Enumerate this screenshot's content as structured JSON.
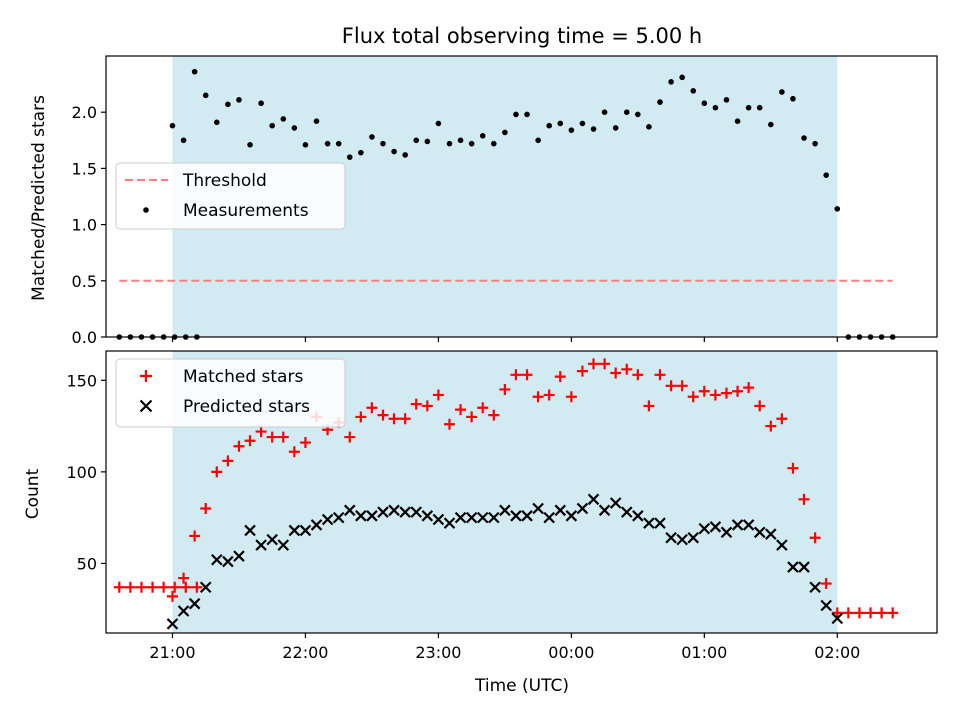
{
  "chart_data": [
    {
      "type": "scatter",
      "title": "Flux total observing time = 5.00 h",
      "ylabel": "Matched/Predicted stars",
      "xlabel": "",
      "xlim": [
        "20:30",
        "02:45"
      ],
      "ylim": [
        0,
        2.5
      ],
      "yticks": [
        0.0,
        0.5,
        1.0,
        1.5,
        2.0
      ],
      "ytick_labels": [
        "0.0",
        "0.5",
        "1.0",
        "1.5",
        "2.0"
      ],
      "shaded_region": {
        "from": "21:00",
        "to": "02:00",
        "color": "#add8e6"
      },
      "legend": {
        "placement": "center-left",
        "entries": [
          "Threshold",
          "Measurements"
        ]
      },
      "threshold": {
        "name": "Threshold",
        "value": 0.5,
        "x_from": "20:36",
        "x_to": "02:25",
        "color": "#ff7f7f",
        "style": "dashed"
      },
      "series": [
        {
          "name": "Measurements",
          "color": "#000000",
          "marker": "dot",
          "x": [
            "20:36",
            "20:41",
            "20:46",
            "20:51",
            "20:56",
            "21:01",
            "21:06",
            "21:11",
            "21:00",
            "21:05",
            "21:10",
            "21:15",
            "21:20",
            "21:25",
            "21:30",
            "21:35",
            "21:40",
            "21:45",
            "21:50",
            "21:55",
            "22:00",
            "22:05",
            "22:10",
            "22:15",
            "22:20",
            "22:25",
            "22:30",
            "22:35",
            "22:40",
            "22:45",
            "22:50",
            "22:55",
            "23:00",
            "23:05",
            "23:10",
            "23:15",
            "23:20",
            "23:25",
            "23:30",
            "23:35",
            "23:40",
            "23:45",
            "23:50",
            "23:55",
            "00:00",
            "00:05",
            "00:10",
            "00:15",
            "00:20",
            "00:25",
            "00:30",
            "00:35",
            "00:40",
            "00:45",
            "00:50",
            "00:55",
            "01:00",
            "01:05",
            "01:10",
            "01:15",
            "01:20",
            "01:25",
            "01:30",
            "01:35",
            "01:40",
            "01:45",
            "01:50",
            "01:55",
            "02:00",
            "02:05",
            "02:10",
            "02:15",
            "02:20",
            "02:25"
          ],
          "y": [
            0,
            0,
            0,
            0,
            0,
            0,
            0,
            0,
            1.88,
            1.75,
            2.36,
            2.15,
            1.91,
            2.07,
            2.11,
            1.71,
            2.08,
            1.88,
            1.94,
            1.86,
            1.71,
            1.92,
            1.72,
            1.72,
            1.6,
            1.64,
            1.78,
            1.72,
            1.65,
            1.62,
            1.75,
            1.74,
            1.9,
            1.72,
            1.75,
            1.72,
            1.79,
            1.72,
            1.82,
            1.98,
            1.98,
            1.75,
            1.88,
            1.9,
            1.84,
            1.9,
            1.85,
            2.0,
            1.86,
            2.0,
            1.98,
            1.87,
            2.09,
            2.27,
            2.31,
            2.19,
            2.08,
            2.04,
            2.11,
            1.92,
            2.04,
            2.04,
            1.89,
            2.18,
            2.12,
            1.77,
            1.72,
            1.44,
            1.14,
            0,
            0,
            0,
            0,
            0
          ]
        }
      ]
    },
    {
      "type": "scatter",
      "title": "",
      "ylabel": "Count",
      "xlabel": "Time (UTC)",
      "xlim": [
        "20:30",
        "02:45"
      ],
      "ylim": [
        12,
        166
      ],
      "yticks": [
        50,
        100,
        150
      ],
      "ytick_labels": [
        "50",
        "100",
        "150"
      ],
      "xticks": [
        "21:00",
        "22:00",
        "23:00",
        "00:00",
        "01:00",
        "02:00"
      ],
      "xtick_labels": [
        "21:00",
        "22:00",
        "23:00",
        "00:00",
        "01:00",
        "02:00"
      ],
      "shaded_region": {
        "from": "21:00",
        "to": "02:00",
        "color": "#add8e6"
      },
      "legend": {
        "placement": "top-left",
        "entries": [
          "Matched stars",
          "Predicted stars"
        ]
      },
      "series": [
        {
          "name": "Matched stars",
          "color": "#ff0000",
          "marker": "plus",
          "x": [
            "20:36",
            "20:41",
            "20:46",
            "20:51",
            "20:56",
            "21:01",
            "21:06",
            "21:11",
            "21:00",
            "21:05",
            "21:10",
            "21:15",
            "21:20",
            "21:25",
            "21:30",
            "21:35",
            "21:40",
            "21:45",
            "21:50",
            "21:55",
            "22:00",
            "22:05",
            "22:10",
            "22:15",
            "22:20",
            "22:25",
            "22:30",
            "22:35",
            "22:40",
            "22:45",
            "22:50",
            "22:55",
            "23:00",
            "23:05",
            "23:10",
            "23:15",
            "23:20",
            "23:25",
            "23:30",
            "23:35",
            "23:40",
            "23:45",
            "23:50",
            "23:55",
            "00:00",
            "00:05",
            "00:10",
            "00:15",
            "00:20",
            "00:25",
            "00:30",
            "00:35",
            "00:40",
            "00:45",
            "00:50",
            "00:55",
            "01:00",
            "01:05",
            "01:10",
            "01:15",
            "01:20",
            "01:25",
            "01:30",
            "01:35",
            "01:40",
            "01:45",
            "01:50",
            "01:55",
            "02:00",
            "02:05",
            "02:10",
            "02:15",
            "02:20",
            "02:25"
          ],
          "y": [
            37,
            37,
            37,
            37,
            37,
            37,
            37,
            37,
            32,
            42,
            65,
            80,
            100,
            106,
            114,
            117,
            122,
            119,
            119,
            111,
            116,
            130,
            123,
            127,
            119,
            130,
            135,
            131,
            129,
            129,
            137,
            136,
            142,
            126,
            134,
            130,
            135,
            131,
            145,
            153,
            153,
            141,
            142,
            152,
            141,
            155,
            159,
            159,
            154,
            156,
            153,
            136,
            153,
            147,
            147,
            141,
            144,
            142,
            143,
            144,
            146,
            136,
            125,
            129,
            102,
            85,
            64,
            39,
            23,
            23,
            23,
            23,
            23,
            23
          ]
        },
        {
          "name": "Predicted stars",
          "color": "#000000",
          "marker": "x",
          "x": [
            "21:00",
            "21:05",
            "21:10",
            "21:15",
            "21:20",
            "21:25",
            "21:30",
            "21:35",
            "21:40",
            "21:45",
            "21:50",
            "21:55",
            "22:00",
            "22:05",
            "22:10",
            "22:15",
            "22:20",
            "22:25",
            "22:30",
            "22:35",
            "22:40",
            "22:45",
            "22:50",
            "22:55",
            "23:00",
            "23:05",
            "23:10",
            "23:15",
            "23:20",
            "23:25",
            "23:30",
            "23:35",
            "23:40",
            "23:45",
            "23:50",
            "23:55",
            "00:00",
            "00:05",
            "00:10",
            "00:15",
            "00:20",
            "00:25",
            "00:30",
            "00:35",
            "00:40",
            "00:45",
            "00:50",
            "00:55",
            "01:00",
            "01:05",
            "01:10",
            "01:15",
            "01:20",
            "01:25",
            "01:30",
            "01:35",
            "01:40",
            "01:45",
            "01:50",
            "01:55",
            "02:00"
          ],
          "y": [
            17,
            24,
            28,
            37,
            52,
            51,
            54,
            68,
            60,
            63,
            60,
            68,
            68,
            71,
            74,
            75,
            79,
            76,
            76,
            78,
            79,
            78,
            78,
            76,
            74,
            72,
            75,
            75,
            75,
            75,
            79,
            76,
            76,
            80,
            75,
            79,
            76,
            80,
            85,
            79,
            83,
            78,
            76,
            72,
            72,
            64,
            63,
            64,
            69,
            70,
            67,
            71,
            71,
            67,
            66,
            60,
            48,
            48,
            37,
            27,
            20
          ]
        }
      ]
    }
  ]
}
